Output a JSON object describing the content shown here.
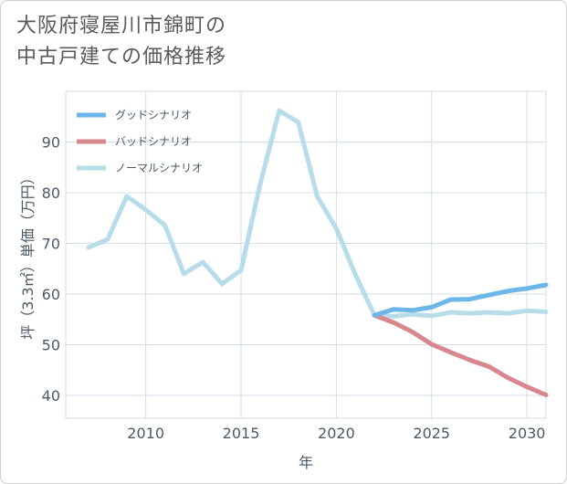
{
  "title": {
    "line1": "大阪府寝屋川市錦町の",
    "line2": "中古戸建ての価格推移"
  },
  "chart_data": {
    "type": "line",
    "xlabel": "年",
    "ylabel": "坪（3.3㎡）単価（万円）",
    "xlim": [
      2005.8,
      2031
    ],
    "ylim": [
      35.5,
      100
    ],
    "xticks": [
      2010,
      2015,
      2020,
      2025,
      2030
    ],
    "yticks": [
      40,
      50,
      60,
      70,
      80,
      90
    ],
    "legend_position": "top-left",
    "series": [
      {
        "name": "グッドシナリオ",
        "color": "#6cb6ea",
        "x": [
          2022,
          2023,
          2024,
          2025,
          2026,
          2027,
          2028,
          2029,
          2030,
          2031
        ],
        "values": [
          55.8,
          57.0,
          56.8,
          57.4,
          58.9,
          59.0,
          59.8,
          60.6,
          61.1,
          61.8
        ]
      },
      {
        "name": "バッドシナリオ",
        "color": "#d9878f",
        "x": [
          2022,
          2023,
          2024,
          2025,
          2026,
          2027,
          2028,
          2029,
          2030,
          2031
        ],
        "values": [
          55.8,
          54.4,
          52.5,
          50.1,
          48.5,
          47.0,
          45.7,
          43.5,
          41.7,
          40.1
        ]
      },
      {
        "name": "ノーマルシナリオ",
        "color": "#b7dcea",
        "x": [
          2007,
          2008,
          2009,
          2010,
          2011,
          2012,
          2013,
          2014,
          2015,
          2016,
          2017,
          2018,
          2019,
          2020,
          2021,
          2022,
          2023,
          2024,
          2025,
          2026,
          2027,
          2028,
          2029,
          2030,
          2031
        ],
        "values": [
          69.2,
          70.8,
          79.3,
          76.6,
          73.6,
          64.0,
          66.3,
          62.0,
          64.7,
          81.7,
          96.2,
          93.9,
          79.2,
          72.9,
          63.8,
          55.8,
          55.6,
          56.0,
          55.7,
          56.4,
          56.2,
          56.4,
          56.2,
          56.7,
          56.5
        ]
      }
    ]
  }
}
